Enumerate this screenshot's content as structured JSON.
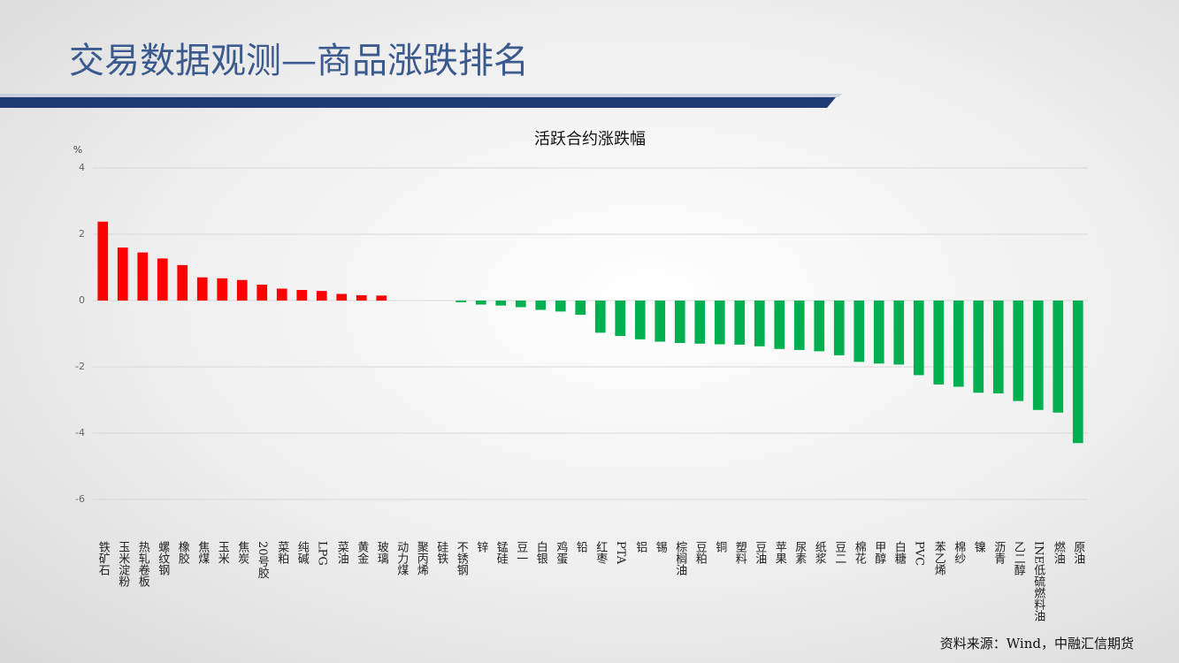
{
  "header": {
    "title": "交易数据观测—商品涨跌排名"
  },
  "chart_data": {
    "type": "bar",
    "title": "活跃合约涨跌幅",
    "y_unit": "%",
    "categories": [
      "铁矿石",
      "玉米淀粉",
      "热轧卷板",
      "螺纹钢",
      "橡胶",
      "焦煤",
      "玉米",
      "焦炭",
      "20号胶",
      "菜粕",
      "纯碱",
      "LPG",
      "菜油",
      "黄金",
      "玻璃",
      "动力煤",
      "聚丙烯",
      "硅铁",
      "不锈钢",
      "锌",
      "锰硅",
      "豆一",
      "白银",
      "鸡蛋",
      "铅",
      "红枣",
      "PTA",
      "铝",
      "锡",
      "棕榈油",
      "豆粕",
      "铜",
      "塑料",
      "豆油",
      "苹果",
      "尿素",
      "纸浆",
      "豆二",
      "棉花",
      "甲醇",
      "白糖",
      "PVC",
      "苯乙烯",
      "棉纱",
      "镍",
      "沥青",
      "乙二醇",
      "INE低硫燃料油",
      "燃油",
      "原油"
    ],
    "values": [
      2.38,
      1.6,
      1.45,
      1.27,
      1.07,
      0.7,
      0.67,
      0.62,
      0.48,
      0.36,
      0.32,
      0.29,
      0.2,
      0.16,
      0.15,
      0,
      0,
      0,
      -0.05,
      -0.12,
      -0.15,
      -0.2,
      -0.28,
      -0.33,
      -0.43,
      -0.97,
      -1.07,
      -1.17,
      -1.24,
      -1.28,
      -1.3,
      -1.32,
      -1.33,
      -1.38,
      -1.46,
      -1.49,
      -1.53,
      -1.65,
      -1.85,
      -1.9,
      -1.93,
      -2.25,
      -2.53,
      -2.6,
      -2.78,
      -2.8,
      -3.03,
      -3.3,
      -3.38,
      -4.3
    ],
    "positive_color": "#ff0000",
    "negative_color": "#00b050",
    "ylim": [
      -6,
      4
    ],
    "yticks": [
      -6,
      -4,
      -2,
      0,
      2,
      4
    ],
    "grid": true
  },
  "footer": {
    "source": "资料来源：Wind，中融汇信期货"
  }
}
